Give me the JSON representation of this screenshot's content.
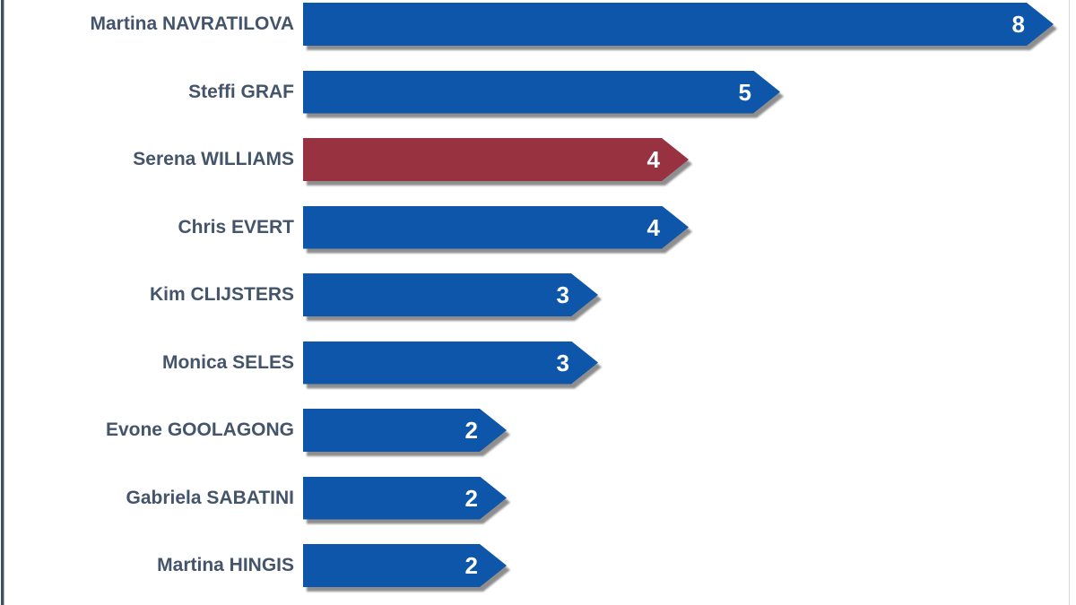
{
  "page": {
    "background": "#FFFFFF"
  },
  "frame": {
    "left_border_color": "#3E4E68",
    "right_border_color": "#D8D8D8"
  },
  "chart_data": {
    "type": "bar",
    "orientation": "horizontal",
    "title": "",
    "xlabel": "",
    "ylabel": "",
    "categories": [
      "Martina NAVRATILOVA",
      "Steffi GRAF",
      "Serena WILLIAMS",
      "Chris EVERT",
      "Kim CLIJSTERS",
      "Monica SELES",
      "Evone GOOLAGONG",
      "Gabriela SABATINI",
      "Martina HINGIS"
    ],
    "values": [
      8,
      5,
      4,
      4,
      3,
      3,
      2,
      2,
      2
    ],
    "value_labels": [
      "8",
      "5",
      "4",
      "4",
      "3",
      "3",
      "2",
      "2",
      "2"
    ],
    "xlim": [
      0,
      8
    ],
    "grid": false,
    "legend": false,
    "axes_visible": false,
    "bar_color": "#0E56A9",
    "highlight_color": "#983140",
    "highlight_index": 2,
    "shadow_color": "#8E8E8E",
    "category_label_color": "#44546A",
    "value_label_color": "#FFFFFF"
  }
}
